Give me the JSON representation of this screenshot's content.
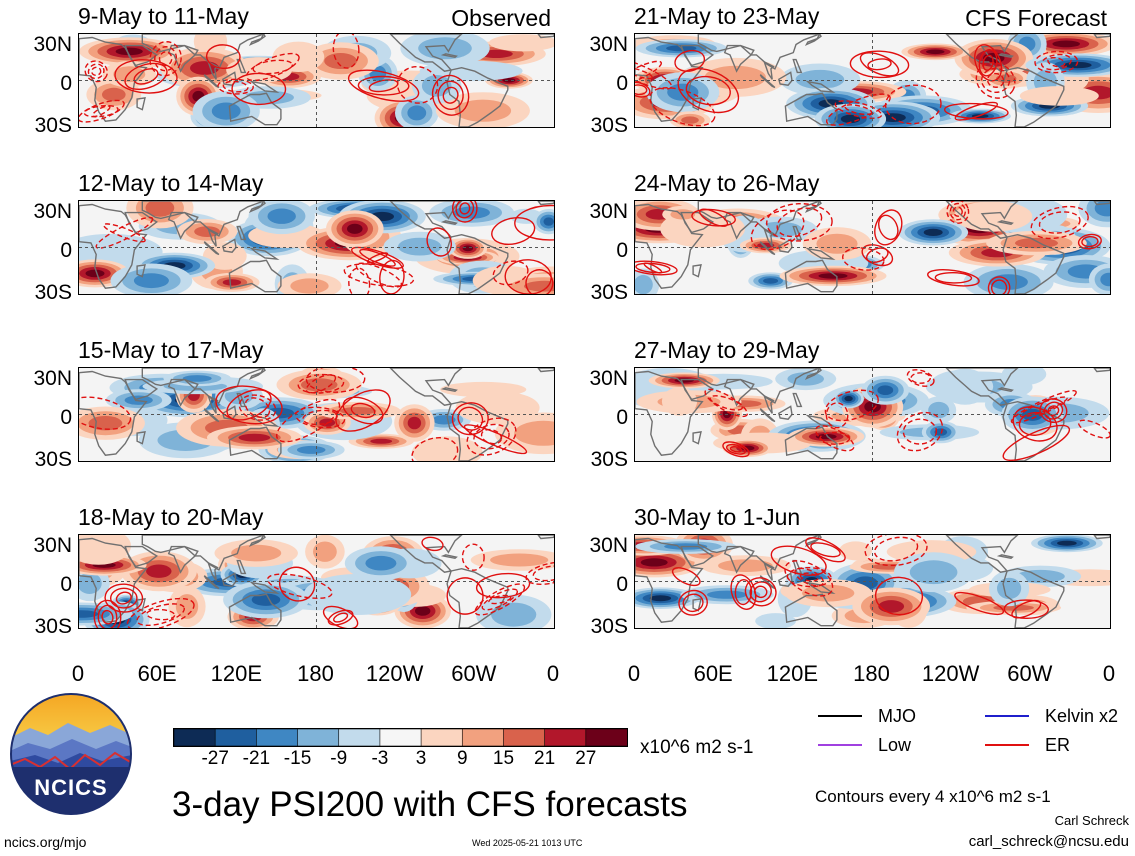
{
  "panels_left": [
    {
      "title": "9-May to 11-May",
      "tag": "Observed"
    },
    {
      "title": "12-May to 14-May",
      "tag": ""
    },
    {
      "title": "15-May to 17-May",
      "tag": ""
    },
    {
      "title": "18-May to 20-May",
      "tag": ""
    }
  ],
  "panels_right": [
    {
      "title": "21-May to 23-May",
      "tag": "CFS Forecast"
    },
    {
      "title": "24-May to 26-May",
      "tag": ""
    },
    {
      "title": "27-May to 29-May",
      "tag": ""
    },
    {
      "title": "30-May to 1-Jun",
      "tag": ""
    }
  ],
  "lat_labels": [
    "30N",
    "0",
    "30S"
  ],
  "lon_labels": [
    "0",
    "60E",
    "120E",
    "180",
    "120W",
    "60W",
    "0"
  ],
  "colorbar": {
    "ticks": [
      "-27",
      "-21",
      "-15",
      "-9",
      "-3",
      "3",
      "9",
      "15",
      "21",
      "27"
    ],
    "units": "x10^6 m2 s-1",
    "colors": [
      "#0d2b55",
      "#1f5f9f",
      "#3f87c3",
      "#7fb3d8",
      "#c2dbec",
      "#f6f6f6",
      "#fbd5c0",
      "#f2a17f",
      "#d9624c",
      "#b2172b",
      "#6c0019"
    ]
  },
  "legend": {
    "items": [
      {
        "label": "MJO",
        "color": "#000000"
      },
      {
        "label": "Kelvin x2",
        "color": "#1f1fcc"
      },
      {
        "label": "Low",
        "color": "#a040e0"
      },
      {
        "label": "ER",
        "color": "#e01010"
      }
    ],
    "note": "Contours every 4 x10^6 m2 s-1"
  },
  "main_title": "3-day PSI200 with CFS forecasts",
  "logo_text": "NCICS",
  "footer": {
    "left": "ncics.org/mjo",
    "center": "Wed 2025-05-21 1013 UTC",
    "author": "Carl Schreck",
    "email": "carl_schreck@ncsu.edu"
  },
  "style_colors": {
    "land": "#707070",
    "ref_lines": "#555555",
    "contour_red": "#e01010"
  }
}
